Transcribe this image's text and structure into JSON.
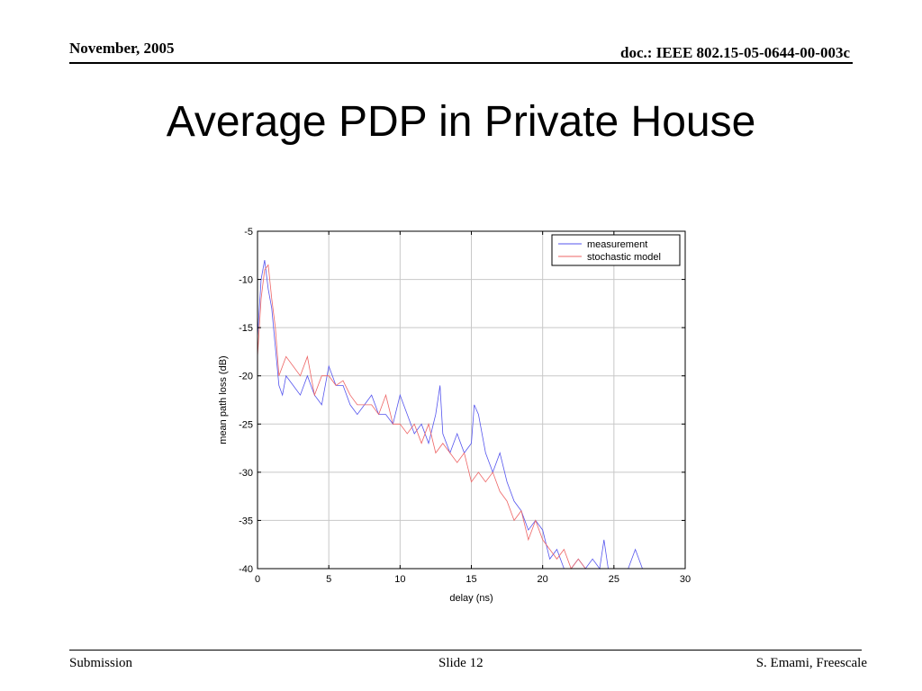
{
  "header": {
    "date": "November, 2005",
    "doc_id": "doc.: IEEE 802.15-05-0644-00-003c"
  },
  "slide": {
    "title": "Average PDP in Private House"
  },
  "footer": {
    "left": "Submission",
    "center": "Slide 12",
    "right": "S. Emami, Freescale"
  },
  "colors": {
    "measurement": "#5555ee",
    "stochastic_model": "#ee6666",
    "grid": "#c8c8c8",
    "axes": "#000000"
  },
  "chart_data": {
    "type": "line",
    "title": "",
    "xlabel": "delay (ns)",
    "ylabel": "mean path loss (dB)",
    "xlim": [
      0,
      30
    ],
    "ylim": [
      -40,
      -5
    ],
    "xticks": [
      0,
      5,
      10,
      15,
      20,
      25,
      30
    ],
    "yticks": [
      -5,
      -10,
      -15,
      -20,
      -25,
      -30,
      -35,
      -40
    ],
    "grid": true,
    "legend_position": "top-right",
    "series": [
      {
        "name": "measurement",
        "color": "#5555ee",
        "x": [
          0,
          0.25,
          0.5,
          0.75,
          1.0,
          1.25,
          1.5,
          1.75,
          2.0,
          2.5,
          3.0,
          3.5,
          4.0,
          4.5,
          5.0,
          5.5,
          6.0,
          6.5,
          7.0,
          7.5,
          8.0,
          8.5,
          9.0,
          9.5,
          10.0,
          10.5,
          11.0,
          11.5,
          12.0,
          12.5,
          12.8,
          13.0,
          13.5,
          14.0,
          14.5,
          15.0,
          15.2,
          15.5,
          16.0,
          16.5,
          17.0,
          17.5,
          18.0,
          18.5,
          19.0,
          19.5,
          20.0,
          20.5,
          21.0,
          21.5,
          22.0,
          22.5,
          23.0,
          23.5,
          24.0,
          24.3,
          24.6,
          25.0,
          25.5,
          26.0,
          26.5,
          27.0,
          27.5
        ],
        "y": [
          -16,
          -10,
          -8,
          -11,
          -13,
          -17,
          -21,
          -22,
          -20,
          -21,
          -22,
          -20,
          -22,
          -23,
          -19,
          -21,
          -21,
          -23,
          -24,
          -23,
          -22,
          -24,
          -24,
          -25,
          -22,
          -24,
          -26,
          -25,
          -27,
          -24,
          -21,
          -26,
          -28,
          -26,
          -28,
          -27,
          -23,
          -24,
          -28,
          -30,
          -28,
          -31,
          -33,
          -34,
          -36,
          -35,
          -36,
          -39,
          -38,
          -40,
          -40,
          -39,
          -40,
          -39,
          -40,
          -37,
          -40,
          -40,
          -40,
          -40,
          -38,
          -40,
          -40
        ]
      },
      {
        "name": "stochastic model",
        "color": "#ee6666",
        "x": [
          0,
          0.25,
          0.5,
          0.75,
          1.0,
          1.25,
          1.5,
          2.0,
          2.5,
          3.0,
          3.5,
          4.0,
          4.5,
          5.0,
          5.5,
          6.0,
          6.5,
          7.0,
          7.5,
          8.0,
          8.5,
          9.0,
          9.5,
          10.0,
          10.5,
          11.0,
          11.5,
          12.0,
          12.5,
          13.0,
          13.5,
          14.0,
          14.5,
          15.0,
          15.5,
          16.0,
          16.5,
          17.0,
          17.5,
          18.0,
          18.5,
          19.0,
          19.5,
          20.0,
          20.5,
          21.0,
          21.5,
          22.0,
          22.5,
          23.0,
          23.5,
          24.0,
          24.5,
          25.0,
          25.5,
          26.0,
          26.5,
          27.0,
          27.5
        ],
        "y": [
          -18,
          -12,
          -9,
          -8.5,
          -12,
          -15,
          -20,
          -18,
          -19,
          -20,
          -18,
          -22,
          -20,
          -20,
          -21,
          -20.5,
          -22,
          -23,
          -23,
          -23,
          -24,
          -22,
          -25,
          -25,
          -26,
          -25,
          -27,
          -25,
          -28,
          -27,
          -28,
          -29,
          -28,
          -31,
          -30,
          -31,
          -30,
          -32,
          -33,
          -35,
          -34,
          -37,
          -35,
          -37,
          -38,
          -39,
          -38,
          -40,
          -39,
          -40,
          -40,
          -40,
          -40,
          -40,
          -40,
          -40,
          -40,
          -40,
          -40
        ]
      }
    ]
  }
}
